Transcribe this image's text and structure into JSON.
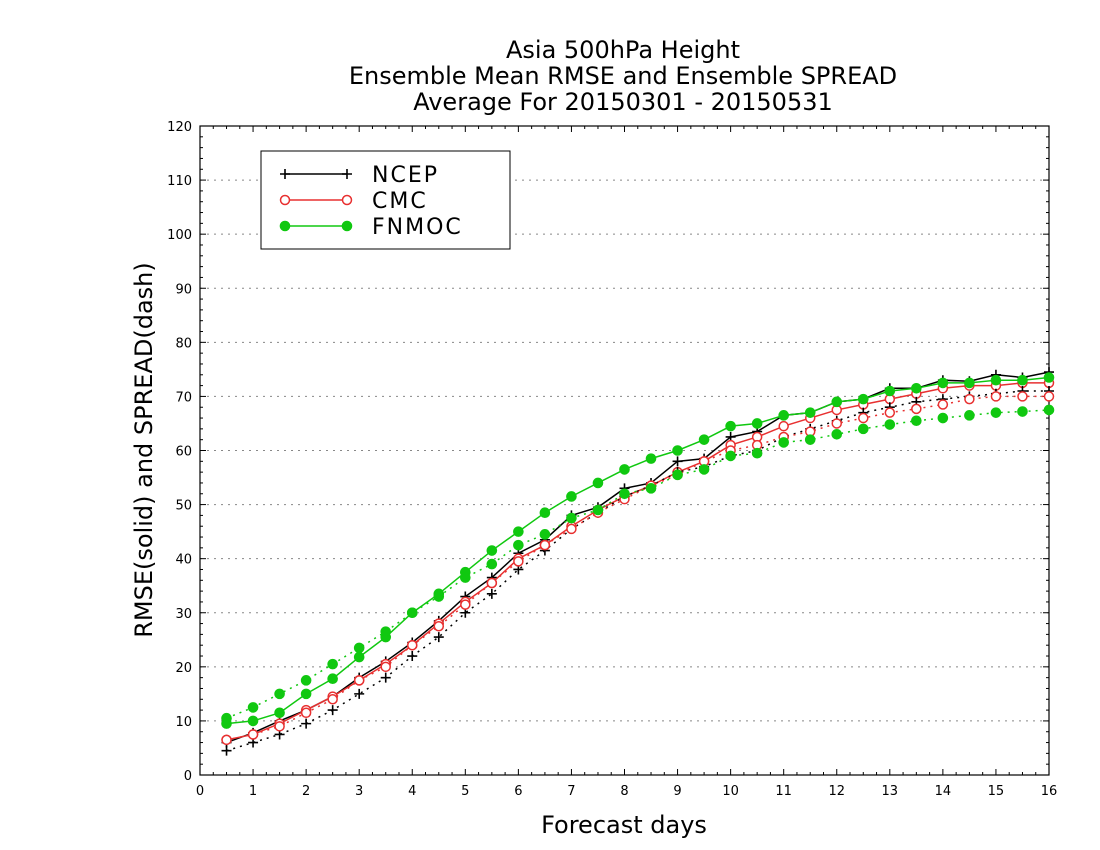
{
  "chart_data": {
    "type": "line",
    "title": [
      "Asia 500hPa Height",
      "Ensemble Mean RMSE and Ensemble SPREAD",
      "Average For 20150301 - 20150531"
    ],
    "xlabel": "Forecast days",
    "ylabel": "RMSE(solid) and SPREAD(dash)",
    "xlim": [
      0,
      16
    ],
    "ylim": [
      0,
      120
    ],
    "xticks": [
      "0",
      "1",
      "2",
      "3",
      "4",
      "5",
      "6",
      "7",
      "8",
      "9",
      "10",
      "11",
      "12",
      "13",
      "14",
      "15",
      "16"
    ],
    "yticks": [
      "0",
      "10",
      "20",
      "30",
      "40",
      "50",
      "60",
      "70",
      "80",
      "90",
      "100",
      "110",
      "120"
    ],
    "grid": "horizontal-dotted",
    "legend_position": "top-left",
    "x": [
      0.5,
      1,
      1.5,
      2,
      2.5,
      3,
      3.5,
      4,
      4.5,
      5,
      5.5,
      6,
      6.5,
      7,
      7.5,
      8,
      8.5,
      9,
      9.5,
      10,
      10.5,
      11,
      11.5,
      12,
      12.5,
      13,
      13.5,
      14,
      14.5,
      15,
      15.5,
      16
    ],
    "series": [
      {
        "name": "NCEP",
        "kind": "RMSE",
        "style": "solid",
        "color": "#000000",
        "marker": "plus",
        "values": [
          6.0,
          7.8,
          10.0,
          12.0,
          14.5,
          18.0,
          21.0,
          24.5,
          28.5,
          33.0,
          36.5,
          41.0,
          43.5,
          48.0,
          49.5,
          53.0,
          54.0,
          58.0,
          58.5,
          62.5,
          63.5,
          66.5,
          67.0,
          69.0,
          69.5,
          71.5,
          71.5,
          73.0,
          72.8,
          74.0,
          73.5,
          74.5
        ]
      },
      {
        "name": "CMC",
        "kind": "RMSE",
        "style": "solid",
        "color": "#e83030",
        "marker": "open-circle",
        "values": [
          6.5,
          7.5,
          9.5,
          12.0,
          14.5,
          17.5,
          20.5,
          24.0,
          28.0,
          32.0,
          35.5,
          40.0,
          42.5,
          46.0,
          49.0,
          51.5,
          53.5,
          56.0,
          58.0,
          61.0,
          62.5,
          64.5,
          66.0,
          67.5,
          68.5,
          69.5,
          70.5,
          71.5,
          72.0,
          72.0,
          72.5,
          72.5
        ]
      },
      {
        "name": "FNMOC",
        "kind": "RMSE",
        "style": "solid",
        "color": "#10c810",
        "marker": "filled-circle",
        "values": [
          9.5,
          10.0,
          11.5,
          15.0,
          17.8,
          21.8,
          25.5,
          30.0,
          33.5,
          37.5,
          41.5,
          45.0,
          48.5,
          51.5,
          54.0,
          56.5,
          58.5,
          60.0,
          62.0,
          64.5,
          65.0,
          66.5,
          67.0,
          69.0,
          69.5,
          71.0,
          71.5,
          72.5,
          72.5,
          73.0,
          73.0,
          73.5
        ]
      },
      {
        "name": "NCEP",
        "kind": "SPREAD",
        "style": "dotted",
        "color": "#000000",
        "marker": "plus",
        "values": [
          4.5,
          6.0,
          7.5,
          9.5,
          12.0,
          15.0,
          18.0,
          22.0,
          25.5,
          30.0,
          33.5,
          38.0,
          41.5,
          45.5,
          48.5,
          51.5,
          53.5,
          56.0,
          57.0,
          59.0,
          60.0,
          62.5,
          64.0,
          65.5,
          67.0,
          68.0,
          69.0,
          69.5,
          70.0,
          70.5,
          71.0,
          71.0
        ]
      },
      {
        "name": "CMC",
        "kind": "SPREAD",
        "style": "dotted",
        "color": "#e83030",
        "marker": "open-circle",
        "values": [
          6.5,
          7.5,
          9.0,
          11.5,
          14.0,
          17.5,
          20.0,
          24.0,
          27.5,
          31.5,
          35.5,
          39.5,
          42.5,
          45.5,
          48.5,
          51.0,
          53.5,
          55.5,
          58.0,
          60.0,
          61.0,
          62.5,
          63.5,
          65.0,
          66.0,
          67.0,
          67.7,
          68.5,
          69.5,
          70.0,
          70.0,
          70.0
        ]
      },
      {
        "name": "FNMOC",
        "kind": "SPREAD",
        "style": "dotted",
        "color": "#10c810",
        "marker": "filled-circle",
        "values": [
          10.5,
          12.5,
          15.0,
          17.5,
          20.5,
          23.5,
          26.5,
          30.0,
          33.0,
          36.5,
          39.0,
          42.5,
          44.5,
          47.5,
          49.0,
          52.0,
          53.0,
          55.5,
          56.5,
          59.0,
          59.5,
          61.5,
          62.0,
          63.0,
          64.0,
          64.8,
          65.5,
          66.0,
          66.5,
          67.0,
          67.2,
          67.5
        ]
      }
    ],
    "legend": [
      {
        "name": "NCEP",
        "color": "#000000",
        "marker": "plus"
      },
      {
        "name": "CMC",
        "color": "#e83030",
        "marker": "open-circle"
      },
      {
        "name": "FNMOC",
        "color": "#10c810",
        "marker": "filled-circle"
      }
    ]
  }
}
